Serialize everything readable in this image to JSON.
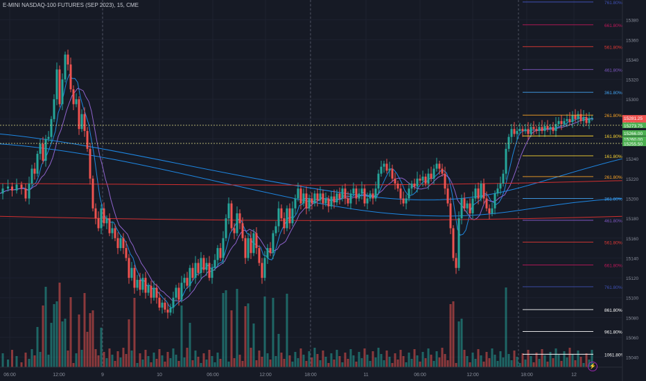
{
  "header": {
    "title": "E-MINI NASDAQ-100 FUTURES (SEP 2023), 15, CME"
  },
  "colors": {
    "background": "#161a25",
    "up": "#26a69a",
    "down": "#ef5350",
    "ema_fast": "#2196f3",
    "ema_slow": "#9c6ce0",
    "ma_long": "#1e88e5",
    "ma_red": "#d32f2f",
    "fib": {
      "blue": "#3f51b5",
      "magenta": "#c2185b",
      "red": "#e53935",
      "purple": "#7e57c2",
      "sky": "#42a5f5",
      "orange": "#ffa726",
      "yellow": "#fdd835",
      "white": "#ffffff"
    }
  },
  "chart_data": {
    "type": "candlestick",
    "title": "E-MINI NASDAQ-100 FUTURES (SEP 2023), 15, CME",
    "x_ticks": [
      "06:00",
      "12:00",
      "9",
      "10",
      "06:00",
      "12:00",
      "18:00",
      "11",
      "06:00",
      "12:00",
      "18:00",
      "12"
    ],
    "y_ticks": [
      15040,
      15060,
      15080,
      15100,
      15120,
      15140,
      15160,
      15180,
      15200,
      15220,
      15240,
      15260,
      15280,
      15300,
      15320,
      15340,
      15360,
      15380
    ],
    "ylim": [
      15030,
      15400
    ],
    "price_labels": [
      {
        "text": "15281.25",
        "sub": "04:36",
        "value": 15281.25,
        "color": "#ef5350"
      },
      {
        "text": "15273.75",
        "value": 15273.75,
        "color": "#4caf50"
      },
      {
        "text": "15266.00",
        "value": 15266.0,
        "color": "#4caf50"
      },
      {
        "text": "15260.00",
        "value": 15260.0,
        "color": "#4caf50"
      },
      {
        "text": "15255.50",
        "value": 15255.5,
        "color": "#4caf50"
      }
    ],
    "fib_levels_upper": [
      {
        "label": "761.80%",
        "value": 15398,
        "color": "#3f51b5"
      },
      {
        "label": "661.80%",
        "value": 15375,
        "color": "#c2185b"
      },
      {
        "label": "561.80%",
        "value": 15353,
        "color": "#e53935"
      },
      {
        "label": "461.80%",
        "value": 15330,
        "color": "#7e57c2"
      },
      {
        "label": "361.80%",
        "value": 15307,
        "color": "#42a5f5"
      },
      {
        "label": "261.80%",
        "value": 15284,
        "color": "#ffa726"
      },
      {
        "label": "161.80%",
        "value": 15263,
        "color": "#fdd835"
      }
    ],
    "fib_levels_lower": [
      {
        "label": "161.80%",
        "value": 15243,
        "color": "#fdd835"
      },
      {
        "label": "261.80%",
        "value": 15222,
        "color": "#ffa726"
      },
      {
        "label": "361.80%",
        "value": 15200,
        "color": "#42a5f5"
      },
      {
        "label": "461.80%",
        "value": 15178,
        "color": "#7e57c2"
      },
      {
        "label": "561.80%",
        "value": 15156,
        "color": "#e53935"
      },
      {
        "label": "661.80%",
        "value": 15133,
        "color": "#c2185b"
      },
      {
        "label": "761.80%",
        "value": 15111,
        "color": "#3f51b5"
      },
      {
        "label": "861.80%",
        "value": 15088,
        "color": "#ffffff"
      },
      {
        "label": "961.80%",
        "value": 15066,
        "color": "#ffffff"
      },
      {
        "label": "1061.80%",
        "value": 15043,
        "color": "#ffffff"
      }
    ],
    "price_path": [
      [
        0,
        15205
      ],
      [
        8,
        15210
      ],
      [
        15,
        15212
      ],
      [
        20,
        15208
      ],
      [
        28,
        15214
      ],
      [
        34,
        15210
      ],
      [
        40,
        15200
      ],
      [
        44,
        15215
      ],
      [
        48,
        15230
      ],
      [
        52,
        15225
      ],
      [
        56,
        15245
      ],
      [
        60,
        15255
      ],
      [
        64,
        15238
      ],
      [
        68,
        15260
      ],
      [
        72,
        15262
      ],
      [
        76,
        15280
      ],
      [
        80,
        15300
      ],
      [
        84,
        15330
      ],
      [
        88,
        15295
      ],
      [
        92,
        15320
      ],
      [
        96,
        15345
      ],
      [
        100,
        15335
      ],
      [
        104,
        15310
      ],
      [
        108,
        15295
      ],
      [
        112,
        15300
      ],
      [
        116,
        15270
      ],
      [
        120,
        15285
      ],
      [
        124,
        15268
      ],
      [
        128,
        15250
      ],
      [
        132,
        15220
      ],
      [
        136,
        15190
      ],
      [
        140,
        15180
      ],
      [
        144,
        15170
      ],
      [
        148,
        15190
      ],
      [
        152,
        15175
      ],
      [
        156,
        15180
      ],
      [
        160,
        15165
      ],
      [
        164,
        15170
      ],
      [
        168,
        15160
      ],
      [
        172,
        15150
      ],
      [
        176,
        15160
      ],
      [
        180,
        15150
      ],
      [
        184,
        15140
      ],
      [
        188,
        15120
      ],
      [
        192,
        15130
      ],
      [
        196,
        15110
      ],
      [
        200,
        15118
      ],
      [
        204,
        15108
      ],
      [
        208,
        15120
      ],
      [
        212,
        15105
      ],
      [
        216,
        15112
      ],
      [
        220,
        15100
      ],
      [
        224,
        15110
      ],
      [
        228,
        15100
      ],
      [
        232,
        15090
      ],
      [
        236,
        15095
      ],
      [
        240,
        15088
      ],
      [
        244,
        15085
      ],
      [
        248,
        15090
      ],
      [
        252,
        15100
      ],
      [
        256,
        15110
      ],
      [
        260,
        15098
      ],
      [
        264,
        15115
      ],
      [
        268,
        15120
      ],
      [
        272,
        15112
      ],
      [
        276,
        15130
      ],
      [
        280,
        15120
      ],
      [
        284,
        15135
      ],
      [
        288,
        15125
      ],
      [
        292,
        15140
      ],
      [
        296,
        15128
      ],
      [
        300,
        15135
      ],
      [
        304,
        15120
      ],
      [
        308,
        15130
      ],
      [
        312,
        15138
      ],
      [
        316,
        15150
      ],
      [
        320,
        15140
      ],
      [
        324,
        15160
      ],
      [
        328,
        15180
      ],
      [
        332,
        15195
      ],
      [
        336,
        15170
      ],
      [
        340,
        15165
      ],
      [
        344,
        15185
      ],
      [
        348,
        15175
      ],
      [
        352,
        15160
      ],
      [
        356,
        15140
      ],
      [
        360,
        15160
      ],
      [
        364,
        15145
      ],
      [
        368,
        15165
      ],
      [
        372,
        15150
      ],
      [
        376,
        15135
      ],
      [
        380,
        15120
      ],
      [
        384,
        15140
      ],
      [
        388,
        15150
      ],
      [
        392,
        15145
      ],
      [
        396,
        15165
      ],
      [
        400,
        15172
      ],
      [
        404,
        15190
      ],
      [
        408,
        15180
      ],
      [
        412,
        15170
      ],
      [
        416,
        15190
      ],
      [
        420,
        15175
      ],
      [
        424,
        15190
      ],
      [
        428,
        15200
      ],
      [
        432,
        15210
      ],
      [
        436,
        15195
      ],
      [
        440,
        15205
      ],
      [
        444,
        15190
      ],
      [
        448,
        15200
      ],
      [
        452,
        15195
      ],
      [
        456,
        15205
      ],
      [
        460,
        15198
      ],
      [
        464,
        15205
      ],
      [
        468,
        15195
      ],
      [
        472,
        15200
      ],
      [
        476,
        15192
      ],
      [
        480,
        15202
      ],
      [
        484,
        15196
      ],
      [
        488,
        15205
      ],
      [
        492,
        15200
      ],
      [
        496,
        15210
      ],
      [
        500,
        15200
      ],
      [
        504,
        15195
      ],
      [
        508,
        15205
      ],
      [
        512,
        15210
      ],
      [
        516,
        15200
      ],
      [
        520,
        15205
      ],
      [
        524,
        15210
      ],
      [
        528,
        15195
      ],
      [
        532,
        15200
      ],
      [
        536,
        15205
      ],
      [
        540,
        15200
      ],
      [
        544,
        15210
      ],
      [
        548,
        15225
      ],
      [
        552,
        15232
      ],
      [
        556,
        15235
      ],
      [
        560,
        15228
      ],
      [
        564,
        15230
      ],
      [
        568,
        15220
      ],
      [
        572,
        15215
      ],
      [
        576,
        15210
      ],
      [
        580,
        15200
      ],
      [
        584,
        15195
      ],
      [
        588,
        15200
      ],
      [
        592,
        15210
      ],
      [
        596,
        15215
      ],
      [
        600,
        15212
      ],
      [
        604,
        15220
      ],
      [
        608,
        15218
      ],
      [
        612,
        15222
      ],
      [
        616,
        15215
      ],
      [
        620,
        15225
      ],
      [
        624,
        15220
      ],
      [
        628,
        15230
      ],
      [
        632,
        15235
      ],
      [
        636,
        15230
      ],
      [
        640,
        15225
      ],
      [
        644,
        15210
      ],
      [
        648,
        15195
      ],
      [
        652,
        15170
      ],
      [
        656,
        15140
      ],
      [
        660,
        15130
      ],
      [
        664,
        15180
      ],
      [
        668,
        15200
      ],
      [
        672,
        15190
      ],
      [
        676,
        15195
      ],
      [
        680,
        15185
      ],
      [
        684,
        15200
      ],
      [
        688,
        15210
      ],
      [
        692,
        15200
      ],
      [
        696,
        15215
      ],
      [
        700,
        15200
      ],
      [
        704,
        15190
      ],
      [
        708,
        15185
      ],
      [
        712,
        15190
      ],
      [
        716,
        15205
      ],
      [
        720,
        15210
      ],
      [
        724,
        15215
      ],
      [
        728,
        15225
      ],
      [
        732,
        15250
      ],
      [
        736,
        15262
      ],
      [
        740,
        15270
      ],
      [
        744,
        15265
      ],
      [
        748,
        15268
      ],
      [
        752,
        15270
      ],
      [
        756,
        15268
      ],
      [
        760,
        15270
      ],
      [
        764,
        15265
      ],
      [
        768,
        15272
      ],
      [
        772,
        15270
      ],
      [
        776,
        15268
      ],
      [
        780,
        15272
      ],
      [
        784,
        15268
      ],
      [
        788,
        15273
      ],
      [
        792,
        15270
      ],
      [
        796,
        15272
      ],
      [
        800,
        15268
      ],
      [
        804,
        15275
      ],
      [
        808,
        15278
      ],
      [
        812,
        15275
      ],
      [
        816,
        15278
      ],
      [
        820,
        15280
      ],
      [
        824,
        15277
      ],
      [
        828,
        15284
      ],
      [
        832,
        15280
      ],
      [
        836,
        15285
      ],
      [
        840,
        15278
      ],
      [
        844,
        15282
      ],
      [
        848,
        15276
      ],
      [
        852,
        15281
      ],
      [
        856,
        15281.25
      ]
    ],
    "hlines": [
      15273.75,
      15255.5
    ],
    "vlines_days": [
      "9",
      "10",
      "11",
      "12"
    ]
  }
}
